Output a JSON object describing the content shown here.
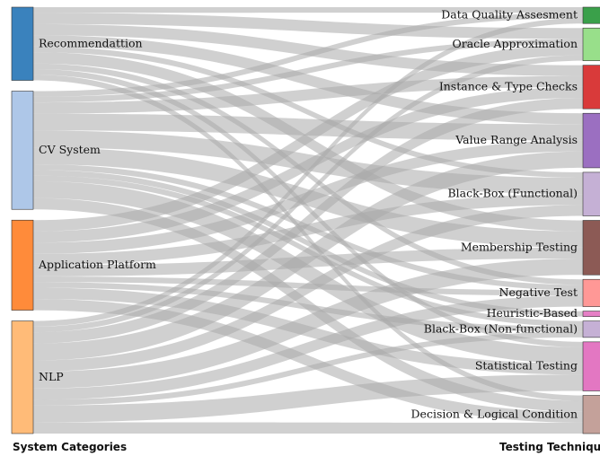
{
  "titles": {
    "left": "System Categories",
    "right": "Testing Techniques"
  },
  "colors": {
    "link": "#a9a9a9",
    "node_stroke": "#333333"
  },
  "sources": [
    {
      "name": "Recommendattion",
      "color": "#3a82bd"
    },
    {
      "name": "CV System",
      "color": "#aec7e8"
    },
    {
      "name": "Application Platform",
      "color": "#ff8b3a"
    },
    {
      "name": "NLP",
      "color": "#ffbb78"
    }
  ],
  "targets": [
    {
      "name": "Data Quality Assesment",
      "color": "#3aa04a"
    },
    {
      "name": "Oracle Approximation",
      "color": "#98df8a"
    },
    {
      "name": "Instance & Type Checks",
      "color": "#d93a3a"
    },
    {
      "name": "Value Range Analysis",
      "color": "#9b6fc1"
    },
    {
      "name": "Black-Box (Functional)",
      "color": "#c5b0d5"
    },
    {
      "name": "Membership Testing",
      "color": "#8c5a55"
    },
    {
      "name": "Negative Test",
      "color": "#ff9896"
    },
    {
      "name": "Heuristic-Based",
      "color": "#e67fc6"
    },
    {
      "name": "Black-Box (Non-functional)",
      "color": "#c5b0d5"
    },
    {
      "name": "Statistical Testing",
      "color": "#e377c2"
    },
    {
      "name": "Decision & Logical Condition",
      "color": "#c4a19a"
    }
  ],
  "links": [
    {
      "source": 0,
      "target": 0,
      "value": 1
    },
    {
      "source": 0,
      "target": 1,
      "value": 2
    },
    {
      "source": 0,
      "target": 2,
      "value": 2
    },
    {
      "source": 0,
      "target": 3,
      "value": 2
    },
    {
      "source": 0,
      "target": 4,
      "value": 1
    },
    {
      "source": 0,
      "target": 5,
      "value": 2
    },
    {
      "source": 0,
      "target": 6,
      "value": 1
    },
    {
      "source": 0,
      "target": 9,
      "value": 1
    },
    {
      "source": 0,
      "target": 10,
      "value": 1
    },
    {
      "source": 1,
      "target": 0,
      "value": 1
    },
    {
      "source": 1,
      "target": 1,
      "value": 1
    },
    {
      "source": 1,
      "target": 2,
      "value": 2
    },
    {
      "source": 1,
      "target": 3,
      "value": 3
    },
    {
      "source": 1,
      "target": 4,
      "value": 3
    },
    {
      "source": 1,
      "target": 5,
      "value": 3
    },
    {
      "source": 1,
      "target": 6,
      "value": 1
    },
    {
      "source": 1,
      "target": 7,
      "value": 1
    },
    {
      "source": 1,
      "target": 8,
      "value": 1
    },
    {
      "source": 1,
      "target": 9,
      "value": 3
    },
    {
      "source": 1,
      "target": 10,
      "value": 2
    },
    {
      "source": 2,
      "target": 1,
      "value": 2
    },
    {
      "source": 2,
      "target": 2,
      "value": 2
    },
    {
      "source": 2,
      "target": 3,
      "value": 2
    },
    {
      "source": 2,
      "target": 4,
      "value": 2
    },
    {
      "source": 2,
      "target": 5,
      "value": 2
    },
    {
      "source": 2,
      "target": 6,
      "value": 1
    },
    {
      "source": 2,
      "target": 8,
      "value": 1
    },
    {
      "source": 2,
      "target": 9,
      "value": 2
    },
    {
      "source": 2,
      "target": 10,
      "value": 2
    },
    {
      "source": 3,
      "target": 0,
      "value": 1
    },
    {
      "source": 3,
      "target": 1,
      "value": 1
    },
    {
      "source": 3,
      "target": 2,
      "value": 2
    },
    {
      "source": 3,
      "target": 3,
      "value": 3
    },
    {
      "source": 3,
      "target": 4,
      "value": 2
    },
    {
      "source": 3,
      "target": 5,
      "value": 3
    },
    {
      "source": 3,
      "target": 6,
      "value": 2
    },
    {
      "source": 3,
      "target": 8,
      "value": 1
    },
    {
      "source": 3,
      "target": 9,
      "value": 3
    },
    {
      "source": 3,
      "target": 10,
      "value": 2
    }
  ]
}
